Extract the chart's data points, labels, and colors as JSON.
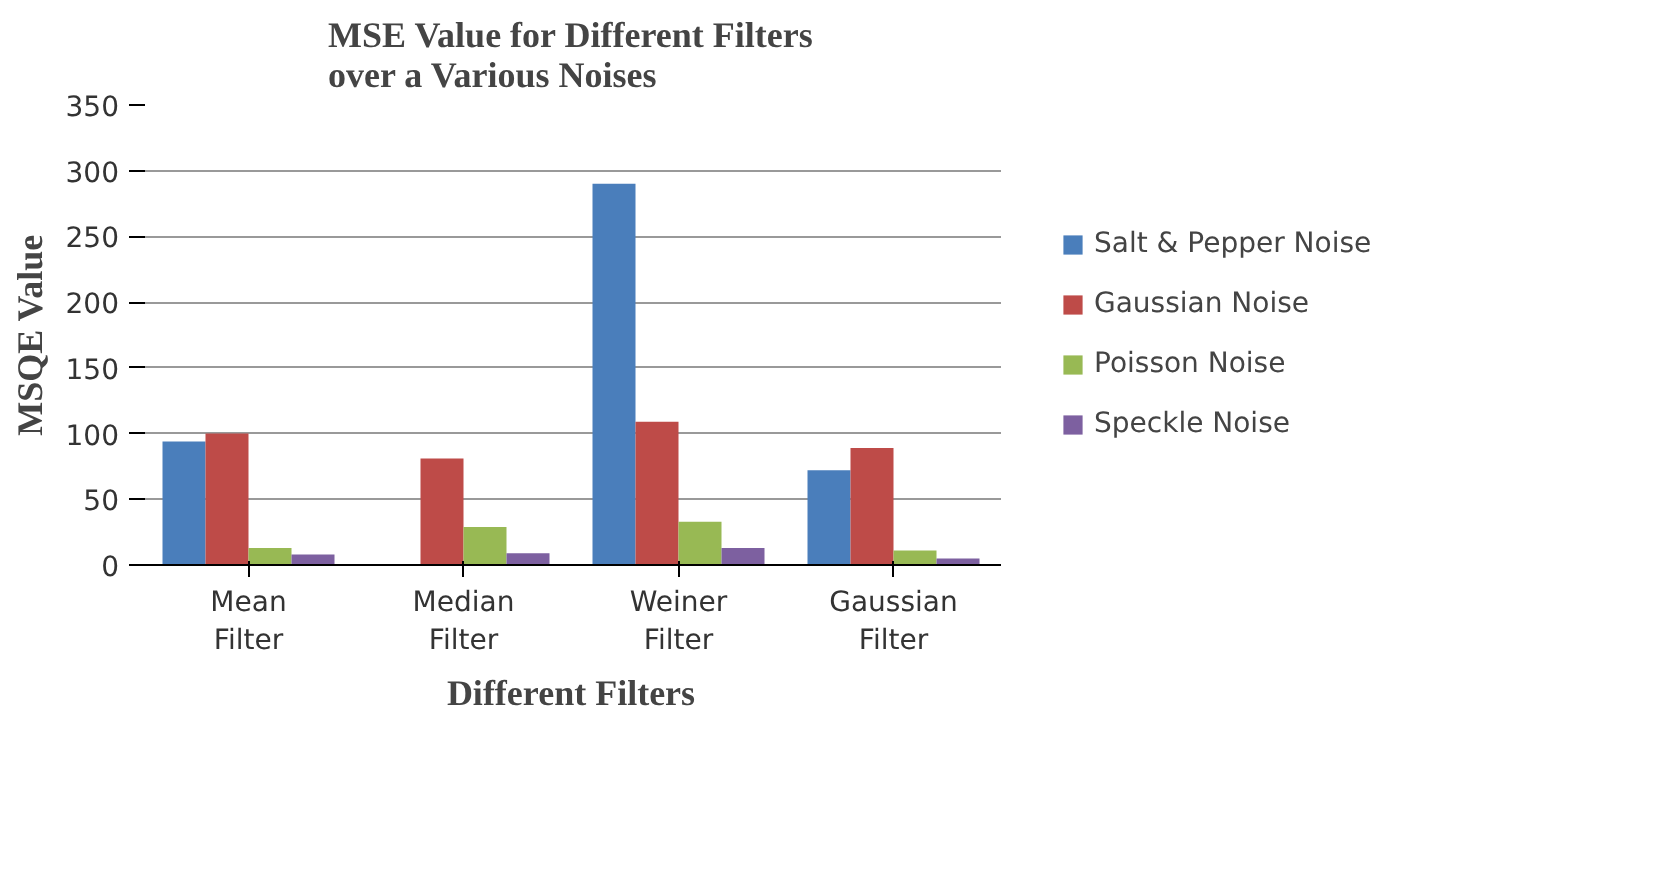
{
  "chart_data": {
    "type": "bar",
    "title": "MSE Value for Different Filters over a Various Noises",
    "xlabel": "Different Filters",
    "ylabel": "MSQE Value",
    "categories": [
      "Mean Filter",
      "Median Filter",
      "Weiner Filter",
      "Gaussian Filter"
    ],
    "series": [
      {
        "name": "Salt & Pepper Noise",
        "color": "#4a7ebb",
        "values": [
          94,
          0,
          290,
          72
        ]
      },
      {
        "name": "Gaussian Noise",
        "color": "#be4b48",
        "values": [
          100,
          81,
          109,
          89
        ]
      },
      {
        "name": "Poisson Noise",
        "color": "#98b954",
        "values": [
          13,
          29,
          33,
          11
        ]
      },
      {
        "name": "Speckle Noise",
        "color": "#7d60a0",
        "values": [
          8,
          9,
          13,
          5
        ]
      }
    ],
    "ylim": [
      0,
      350
    ],
    "yticks": [
      0,
      50,
      100,
      150,
      200,
      250,
      300,
      350
    ],
    "grid": "y",
    "legend": "right"
  }
}
